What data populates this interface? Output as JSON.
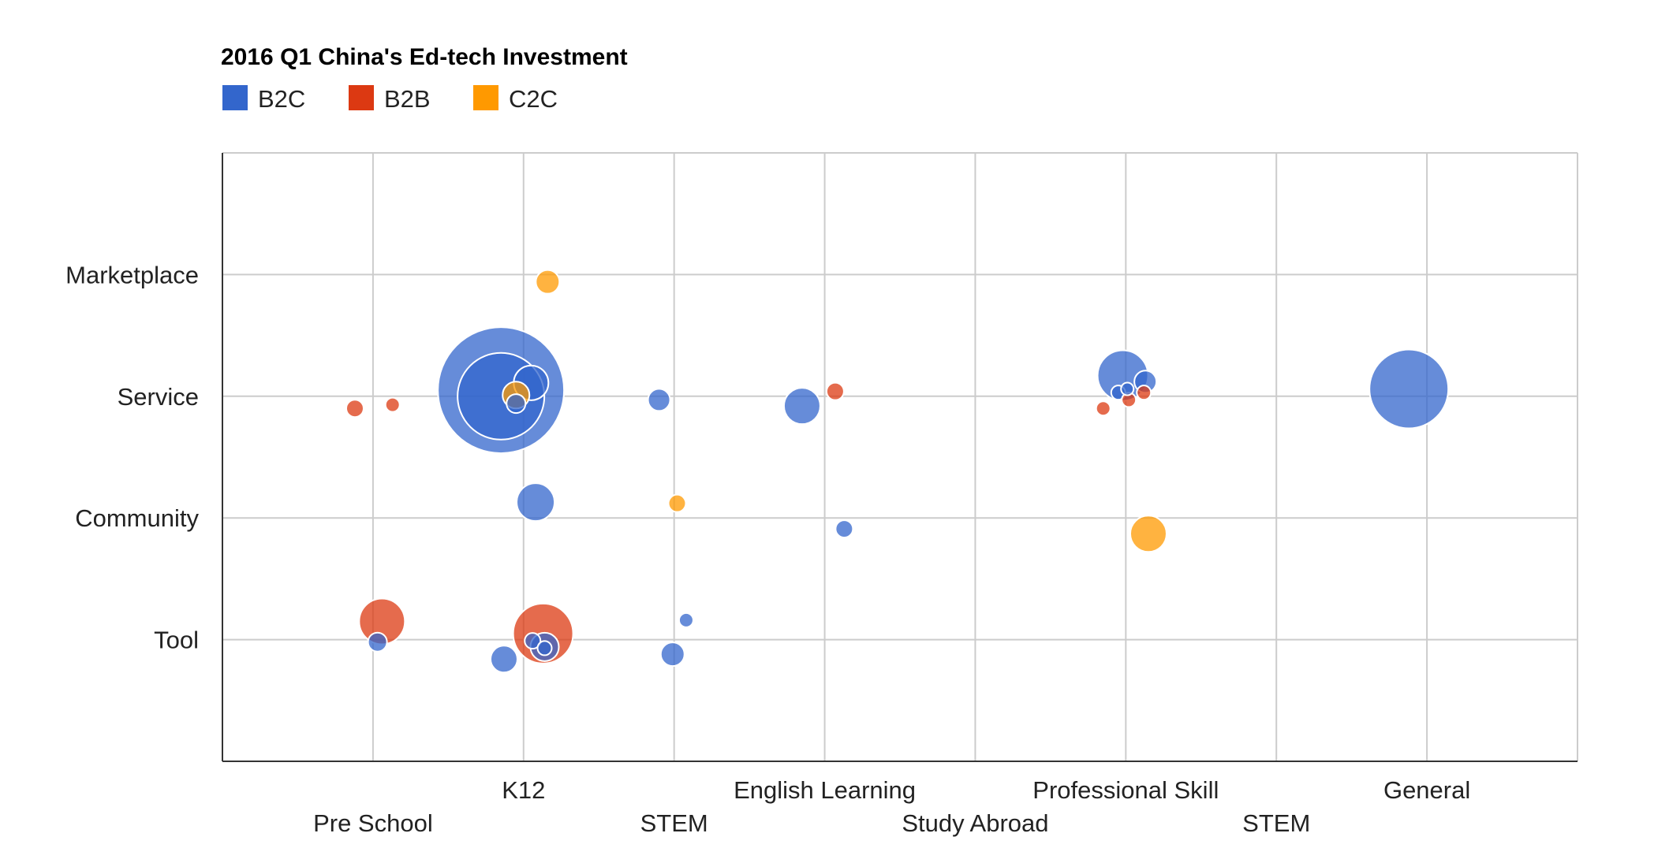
{
  "chart_data": {
    "type": "scatter",
    "subtype": "bubble",
    "title": "2016 Q1 China's Ed-tech Investment",
    "legend": {
      "position": "top-left",
      "entries": [
        {
          "name": "B2C",
          "color": "#3366cc"
        },
        {
          "name": "B2B",
          "color": "#dc3912"
        },
        {
          "name": "C2C",
          "color": "#ff9900"
        }
      ]
    },
    "x_axis": {
      "range": [
        0,
        9
      ],
      "ticks": [
        {
          "value": 1,
          "label": "Pre School",
          "row": 2
        },
        {
          "value": 2,
          "label": "K12",
          "row": 1
        },
        {
          "value": 3,
          "label": "STEM",
          "row": 2
        },
        {
          "value": 4,
          "label": "English Learning",
          "row": 1
        },
        {
          "value": 5,
          "label": "Study Abroad",
          "row": 2
        },
        {
          "value": 6,
          "label": "Professional Skill",
          "row": 1
        },
        {
          "value": 7,
          "label": "STEM",
          "row": 2
        },
        {
          "value": 8,
          "label": "General",
          "row": 1
        }
      ],
      "gridlines": [
        1,
        2,
        3,
        4,
        5,
        6,
        7,
        8,
        9
      ]
    },
    "y_axis": {
      "range": [
        0,
        5
      ],
      "ticks": [
        {
          "value": 1,
          "label": "Tool"
        },
        {
          "value": 2,
          "label": "Community"
        },
        {
          "value": 3,
          "label": "Service"
        },
        {
          "value": 4,
          "label": "Marketplace"
        }
      ],
      "gridlines": [
        1,
        2,
        3,
        4
      ]
    },
    "grid": true,
    "series": [
      {
        "name": "B2C",
        "color": "#3366cc",
        "points": [
          {
            "x": 1.85,
            "y": 3.05,
            "size": 80
          },
          {
            "x": 1.85,
            "y": 3.0,
            "size": 55
          },
          {
            "x": 2.05,
            "y": 3.11,
            "size": 22
          },
          {
            "x": 1.95,
            "y": 2.94,
            "size": 12
          },
          {
            "x": 2.08,
            "y": 2.13,
            "size": 24
          },
          {
            "x": 2.9,
            "y": 2.97,
            "size": 14
          },
          {
            "x": 3.85,
            "y": 2.92,
            "size": 23
          },
          {
            "x": 5.98,
            "y": 3.17,
            "size": 32
          },
          {
            "x": 6.13,
            "y": 3.12,
            "size": 14
          },
          {
            "x": 6.01,
            "y": 3.06,
            "size": 8
          },
          {
            "x": 5.95,
            "y": 3.03,
            "size": 9
          },
          {
            "x": 7.88,
            "y": 3.06,
            "size": 50
          },
          {
            "x": 4.13,
            "y": 1.91,
            "size": 11
          },
          {
            "x": 1.03,
            "y": 0.98,
            "size": 12
          },
          {
            "x": 1.87,
            "y": 0.84,
            "size": 17
          },
          {
            "x": 2.14,
            "y": 0.94,
            "size": 18
          },
          {
            "x": 2.06,
            "y": 0.99,
            "size": 10
          },
          {
            "x": 2.14,
            "y": 0.93,
            "size": 9
          },
          {
            "x": 2.99,
            "y": 0.88,
            "size": 15
          },
          {
            "x": 3.08,
            "y": 1.16,
            "size": 9
          }
        ]
      },
      {
        "name": "B2B",
        "color": "#dc3912",
        "points": [
          {
            "x": 0.88,
            "y": 2.9,
            "size": 11
          },
          {
            "x": 1.13,
            "y": 2.93,
            "size": 9
          },
          {
            "x": 4.07,
            "y": 3.04,
            "size": 11
          },
          {
            "x": 5.85,
            "y": 2.9,
            "size": 9
          },
          {
            "x": 6.02,
            "y": 2.97,
            "size": 9
          },
          {
            "x": 6.12,
            "y": 3.03,
            "size": 9
          },
          {
            "x": 1.06,
            "y": 1.15,
            "size": 29
          },
          {
            "x": 2.13,
            "y": 1.05,
            "size": 38
          }
        ]
      },
      {
        "name": "C2C",
        "color": "#ff9900",
        "points": [
          {
            "x": 2.16,
            "y": 3.94,
            "size": 15
          },
          {
            "x": 1.95,
            "y": 3.01,
            "size": 17
          },
          {
            "x": 3.02,
            "y": 2.12,
            "size": 11
          },
          {
            "x": 6.15,
            "y": 1.87,
            "size": 23
          }
        ]
      }
    ]
  }
}
